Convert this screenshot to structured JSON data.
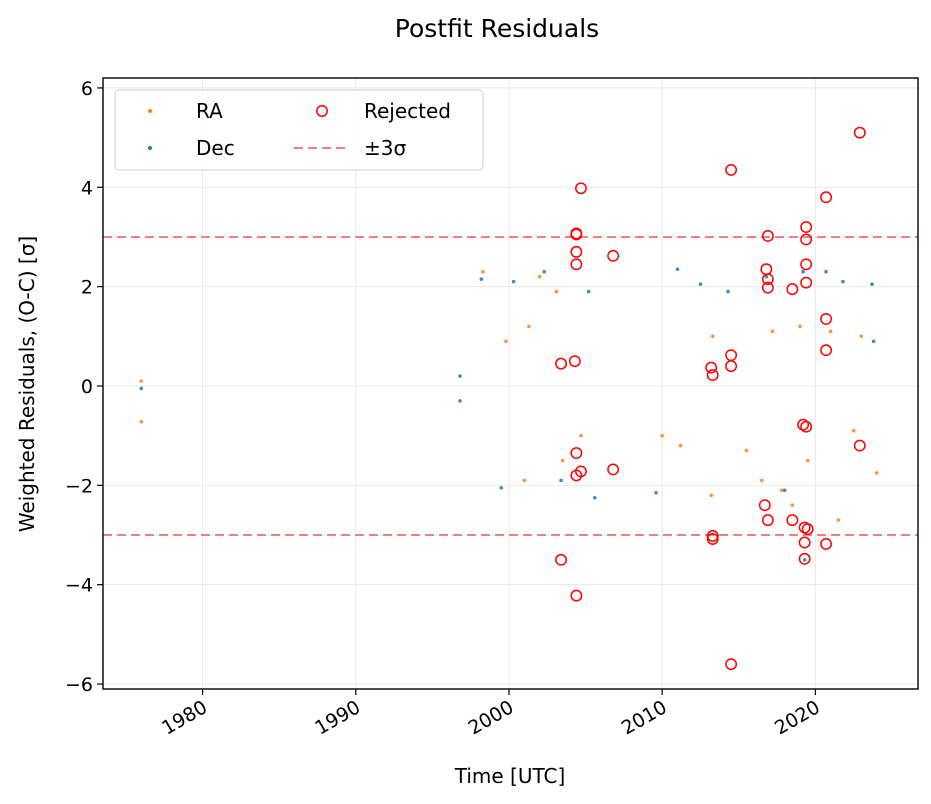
{
  "chart_data": {
    "type": "scatter",
    "title": "Postfit Residuals",
    "xlabel": "Time [UTC]",
    "ylabel": "Weighted Residuals, (O-C) [σ]",
    "xlim": [
      1973.5,
      2026.7
    ],
    "ylim": [
      -6.1,
      6.2
    ],
    "x_ticks": [
      1980,
      1990,
      2000,
      2010,
      2020
    ],
    "y_ticks": [
      -6,
      -4,
      -2,
      0,
      2,
      4,
      6
    ],
    "y_tick_labels": [
      "−6",
      "−4",
      "−2",
      "0",
      "2",
      "4",
      "6"
    ],
    "grid": true,
    "legend_placement": "top-left",
    "legend": [
      {
        "key": "ra",
        "label": "RA",
        "marker": "dot",
        "color": "#ff7f0e"
      },
      {
        "key": "dec",
        "label": "Dec",
        "marker": "dot",
        "color": "#1f77b4"
      },
      {
        "key": "rejected",
        "label": "Rejected",
        "marker": "open-circle",
        "color": "#ff0000"
      },
      {
        "key": "sigma",
        "label": "±3σ",
        "marker": "dashed-line",
        "color": "#f08080"
      }
    ],
    "threshold_lines": [
      3,
      -3
    ],
    "threshold_color": "#f08080",
    "series": [
      {
        "name": "RA",
        "color": "#ff7f0e",
        "points": [
          [
            1976.0,
            0.1
          ],
          [
            1976.0,
            -0.72
          ],
          [
            1998.3,
            2.3
          ],
          [
            1999.8,
            0.9
          ],
          [
            2001.3,
            1.2
          ],
          [
            2002.0,
            2.2
          ],
          [
            2003.1,
            1.9
          ],
          [
            2001.0,
            -1.9
          ],
          [
            2003.5,
            -1.5
          ],
          [
            2004.7,
            -1.0
          ],
          [
            2010.0,
            -1.0
          ],
          [
            2011.2,
            -1.2
          ],
          [
            2013.2,
            -2.2
          ],
          [
            2015.5,
            -1.3
          ],
          [
            2016.5,
            -1.9
          ],
          [
            2017.8,
            -2.1
          ],
          [
            2018.5,
            -2.4
          ],
          [
            2019.5,
            -1.5
          ],
          [
            2021.5,
            -2.7
          ],
          [
            2022.5,
            -0.9
          ],
          [
            2024.0,
            -1.75
          ],
          [
            2013.3,
            1.0
          ],
          [
            2017.2,
            1.1
          ],
          [
            2019.0,
            1.2
          ],
          [
            2021.0,
            1.1
          ],
          [
            2023.0,
            1.0
          ]
        ]
      },
      {
        "name": "Dec",
        "color": "#1f77b4",
        "points": [
          [
            1976.0,
            -0.05
          ],
          [
            1996.8,
            0.2
          ],
          [
            1996.8,
            -0.3
          ],
          [
            1998.2,
            2.15
          ],
          [
            1999.5,
            -2.05
          ],
          [
            2000.3,
            2.1
          ],
          [
            2002.3,
            2.3
          ],
          [
            2003.4,
            -1.9
          ],
          [
            2005.2,
            1.9
          ],
          [
            2005.6,
            -2.25
          ],
          [
            2009.6,
            -2.15
          ],
          [
            2011.0,
            2.35
          ],
          [
            2012.5,
            2.05
          ],
          [
            2014.3,
            1.9
          ],
          [
            2016.8,
            2.2
          ],
          [
            2019.2,
            2.3
          ],
          [
            2020.7,
            2.3
          ],
          [
            2021.8,
            2.1
          ],
          [
            2023.7,
            2.05
          ],
          [
            2023.8,
            0.9
          ],
          [
            2018.0,
            -2.1
          ],
          [
            2019.3,
            -3.5
          ]
        ]
      },
      {
        "name": "Rejected",
        "color": "#ff0000",
        "points": [
          [
            2004.4,
            3.07
          ],
          [
            2004.4,
            3.05
          ],
          [
            2004.4,
            2.7
          ],
          [
            2004.4,
            2.45
          ],
          [
            2004.7,
            3.98
          ],
          [
            2006.8,
            2.62
          ],
          [
            2003.4,
            0.45
          ],
          [
            2004.3,
            0.5
          ],
          [
            2004.4,
            -1.35
          ],
          [
            2004.7,
            -1.72
          ],
          [
            2004.4,
            -1.8
          ],
          [
            2006.8,
            -1.68
          ],
          [
            2003.4,
            -3.5
          ],
          [
            2004.4,
            -4.22
          ],
          [
            2013.3,
            -3.02
          ],
          [
            2013.3,
            -3.08
          ],
          [
            2013.2,
            0.37
          ],
          [
            2013.3,
            0.22
          ],
          [
            2014.5,
            0.62
          ],
          [
            2014.5,
            0.4
          ],
          [
            2014.5,
            4.35
          ],
          [
            2014.5,
            -5.6
          ],
          [
            2016.9,
            3.02
          ],
          [
            2016.8,
            2.35
          ],
          [
            2016.9,
            2.15
          ],
          [
            2016.9,
            1.98
          ],
          [
            2016.7,
            -2.4
          ],
          [
            2016.9,
            -2.7
          ],
          [
            2018.5,
            1.95
          ],
          [
            2018.5,
            -2.7
          ],
          [
            2019.4,
            3.2
          ],
          [
            2019.4,
            2.95
          ],
          [
            2019.4,
            2.45
          ],
          [
            2019.4,
            2.08
          ],
          [
            2019.2,
            -0.78
          ],
          [
            2019.4,
            -0.82
          ],
          [
            2019.3,
            -2.85
          ],
          [
            2019.5,
            -2.88
          ],
          [
            2019.3,
            -3.15
          ],
          [
            2019.3,
            -3.48
          ],
          [
            2020.7,
            3.8
          ],
          [
            2020.7,
            1.35
          ],
          [
            2020.7,
            0.72
          ],
          [
            2020.7,
            -3.18
          ],
          [
            2022.9,
            5.1
          ],
          [
            2022.9,
            -1.2
          ]
        ]
      }
    ]
  }
}
